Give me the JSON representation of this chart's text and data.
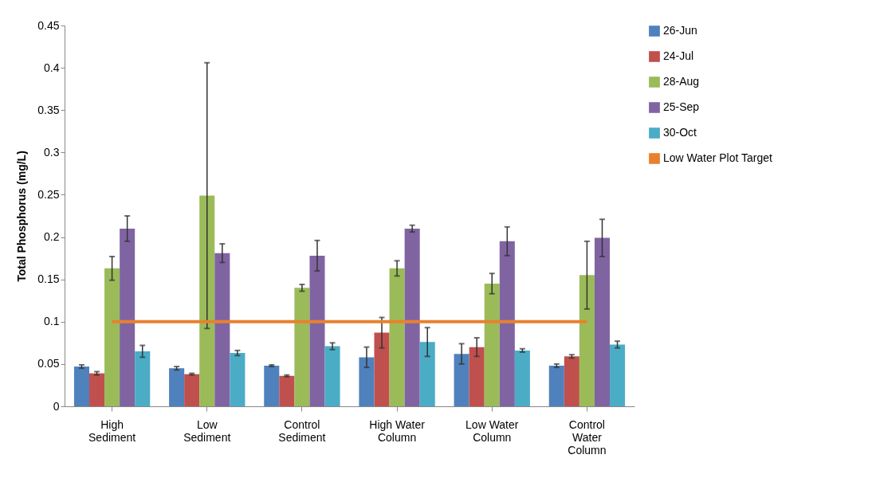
{
  "chart_data": {
    "type": "bar",
    "ylabel": "Total Phosphorus (mg/L)",
    "categories": [
      "High Sediment",
      "Low Sediment",
      "Control Sediment",
      "High Water Column",
      "Low Water Column",
      "Control Water Column"
    ],
    "ylim": [
      0,
      0.45
    ],
    "yticks": [
      0,
      0.05,
      0.1,
      0.15,
      0.2,
      0.25,
      0.3,
      0.35,
      0.4,
      0.45
    ],
    "legend": "right",
    "series": [
      {
        "name": "26-Jun",
        "color": "#4f81bd",
        "values": [
          0.047,
          0.045,
          0.048,
          0.058,
          0.062,
          0.048
        ],
        "errors": [
          0.002,
          0.002,
          0.001,
          0.012,
          0.012,
          0.002
        ]
      },
      {
        "name": "24-Jul",
        "color": "#c0504d",
        "values": [
          0.039,
          0.038,
          0.036,
          0.087,
          0.07,
          0.059
        ],
        "errors": [
          0.002,
          0.001,
          0.001,
          0.018,
          0.011,
          0.002
        ]
      },
      {
        "name": "28-Aug",
        "color": "#9bbb59",
        "values": [
          0.163,
          0.249,
          0.14,
          0.163,
          0.145,
          0.155
        ],
        "errors": [
          0.014,
          0.157,
          0.004,
          0.009,
          0.012,
          0.04
        ]
      },
      {
        "name": "25-Sep",
        "color": "#8064a2",
        "values": [
          0.21,
          0.181,
          0.178,
          0.21,
          0.195,
          0.199
        ],
        "errors": [
          0.015,
          0.011,
          0.018,
          0.004,
          0.017,
          0.022
        ]
      },
      {
        "name": "30-Oct",
        "color": "#4bacc6",
        "values": [
          0.065,
          0.063,
          0.071,
          0.076,
          0.066,
          0.073
        ],
        "errors": [
          0.007,
          0.003,
          0.004,
          0.017,
          0.002,
          0.004
        ]
      },
      {
        "name": "Low Water Plot Target",
        "type": "line",
        "color": "#e8812e",
        "values": [
          0.1,
          0.1,
          0.1,
          0.1,
          0.1,
          0.1
        ]
      }
    ]
  }
}
